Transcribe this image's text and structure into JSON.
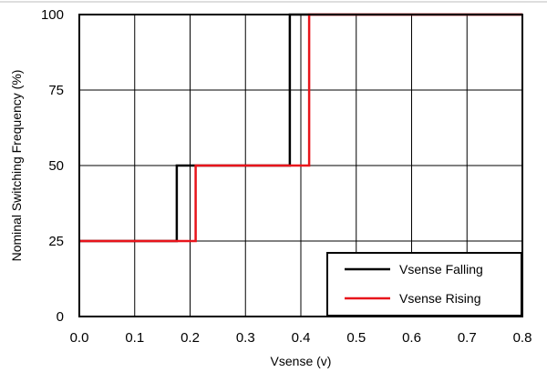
{
  "chart_data": {
    "type": "line",
    "xlabel": "Vsense (v)",
    "ylabel": "Nominal Switching Frequency (%)",
    "xlim": [
      0,
      0.8
    ],
    "ylim": [
      0,
      100
    ],
    "xticks": [
      0.0,
      0.1,
      0.2,
      0.3,
      0.4,
      0.5,
      0.6,
      0.7,
      0.8
    ],
    "xtick_labels": [
      "0.0",
      "0.1",
      "0.2",
      "0.3",
      "0.4",
      "0.5",
      "0.6",
      "0.7",
      "0.8"
    ],
    "yticks": [
      0,
      25,
      50,
      75,
      100
    ],
    "ytick_labels": [
      "0",
      "25",
      "50",
      "75",
      "100"
    ],
    "grid": true,
    "legend_position": "bottom-right",
    "series": [
      {
        "name": "Vsense Falling",
        "color": "#000000",
        "x": [
          0.0,
          0.176,
          0.176,
          0.38,
          0.38,
          0.8
        ],
        "y": [
          25,
          25,
          50,
          50,
          100,
          100
        ]
      },
      {
        "name": "Vsense Rising",
        "color": "#e8141b",
        "x": [
          0.0,
          0.21,
          0.21,
          0.415,
          0.415,
          0.8
        ],
        "y": [
          25,
          25,
          50,
          50,
          100,
          100
        ]
      }
    ]
  }
}
